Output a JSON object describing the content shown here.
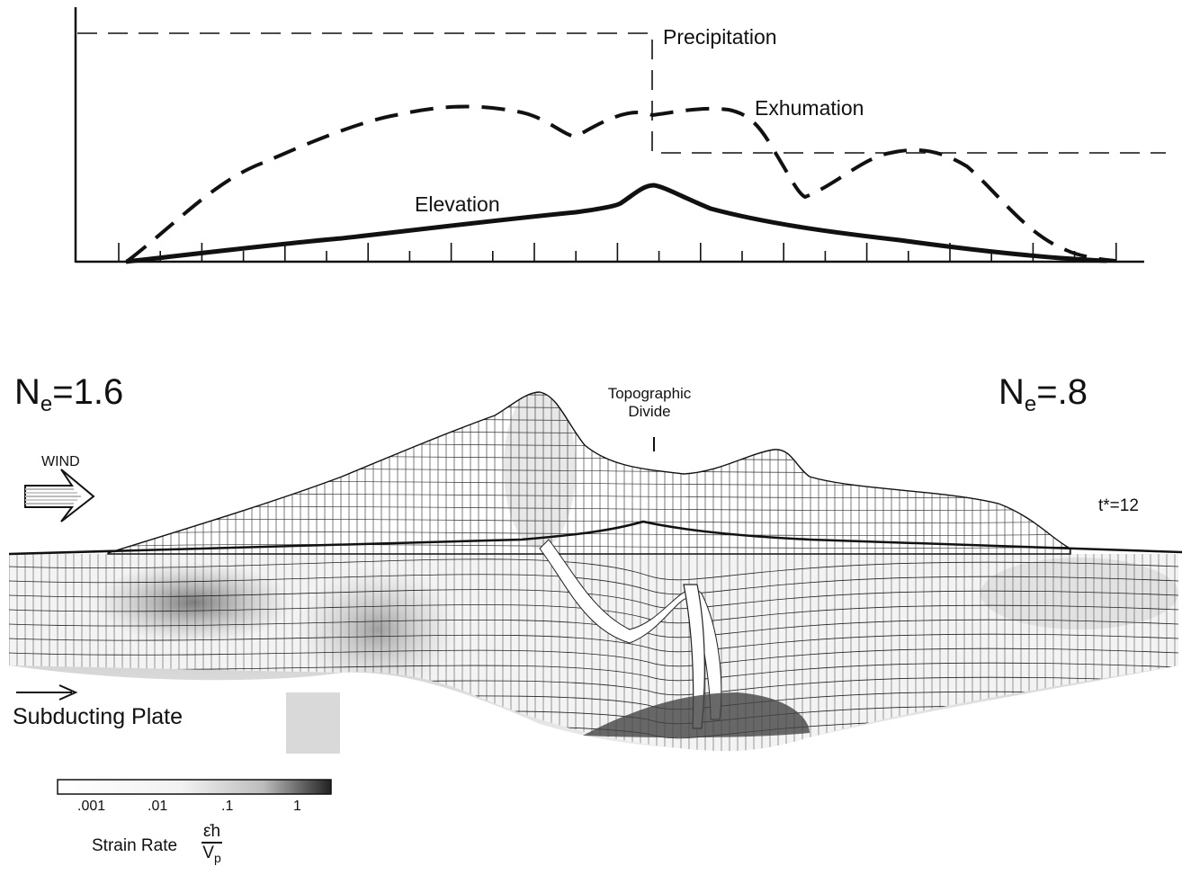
{
  "top_panel": {
    "curves": {
      "precipitation": "Precipitation",
      "exhumation": "Exhumation",
      "elevation": "Elevation"
    }
  },
  "cross_section": {
    "left_label": {
      "prefix": "N",
      "sub": "e",
      "value": "=1.6"
    },
    "right_label": {
      "prefix": "N",
      "sub": "e",
      "value": "=.8"
    },
    "divide_label": [
      "Topographic",
      "Divide"
    ],
    "wind_label": "WIND",
    "time_label": "t*=12",
    "plate_label": "Subducting Plate"
  },
  "legend": {
    "ticks": [
      ".001",
      ".01",
      ".1",
      "1"
    ],
    "title": "Strain Rate",
    "fraction_numerator": "ε̇h",
    "fraction_denominator": "V",
    "fraction_denominator_sub": "p",
    "colors": {
      "low": "#ffffff",
      "high": "#222222"
    }
  }
}
